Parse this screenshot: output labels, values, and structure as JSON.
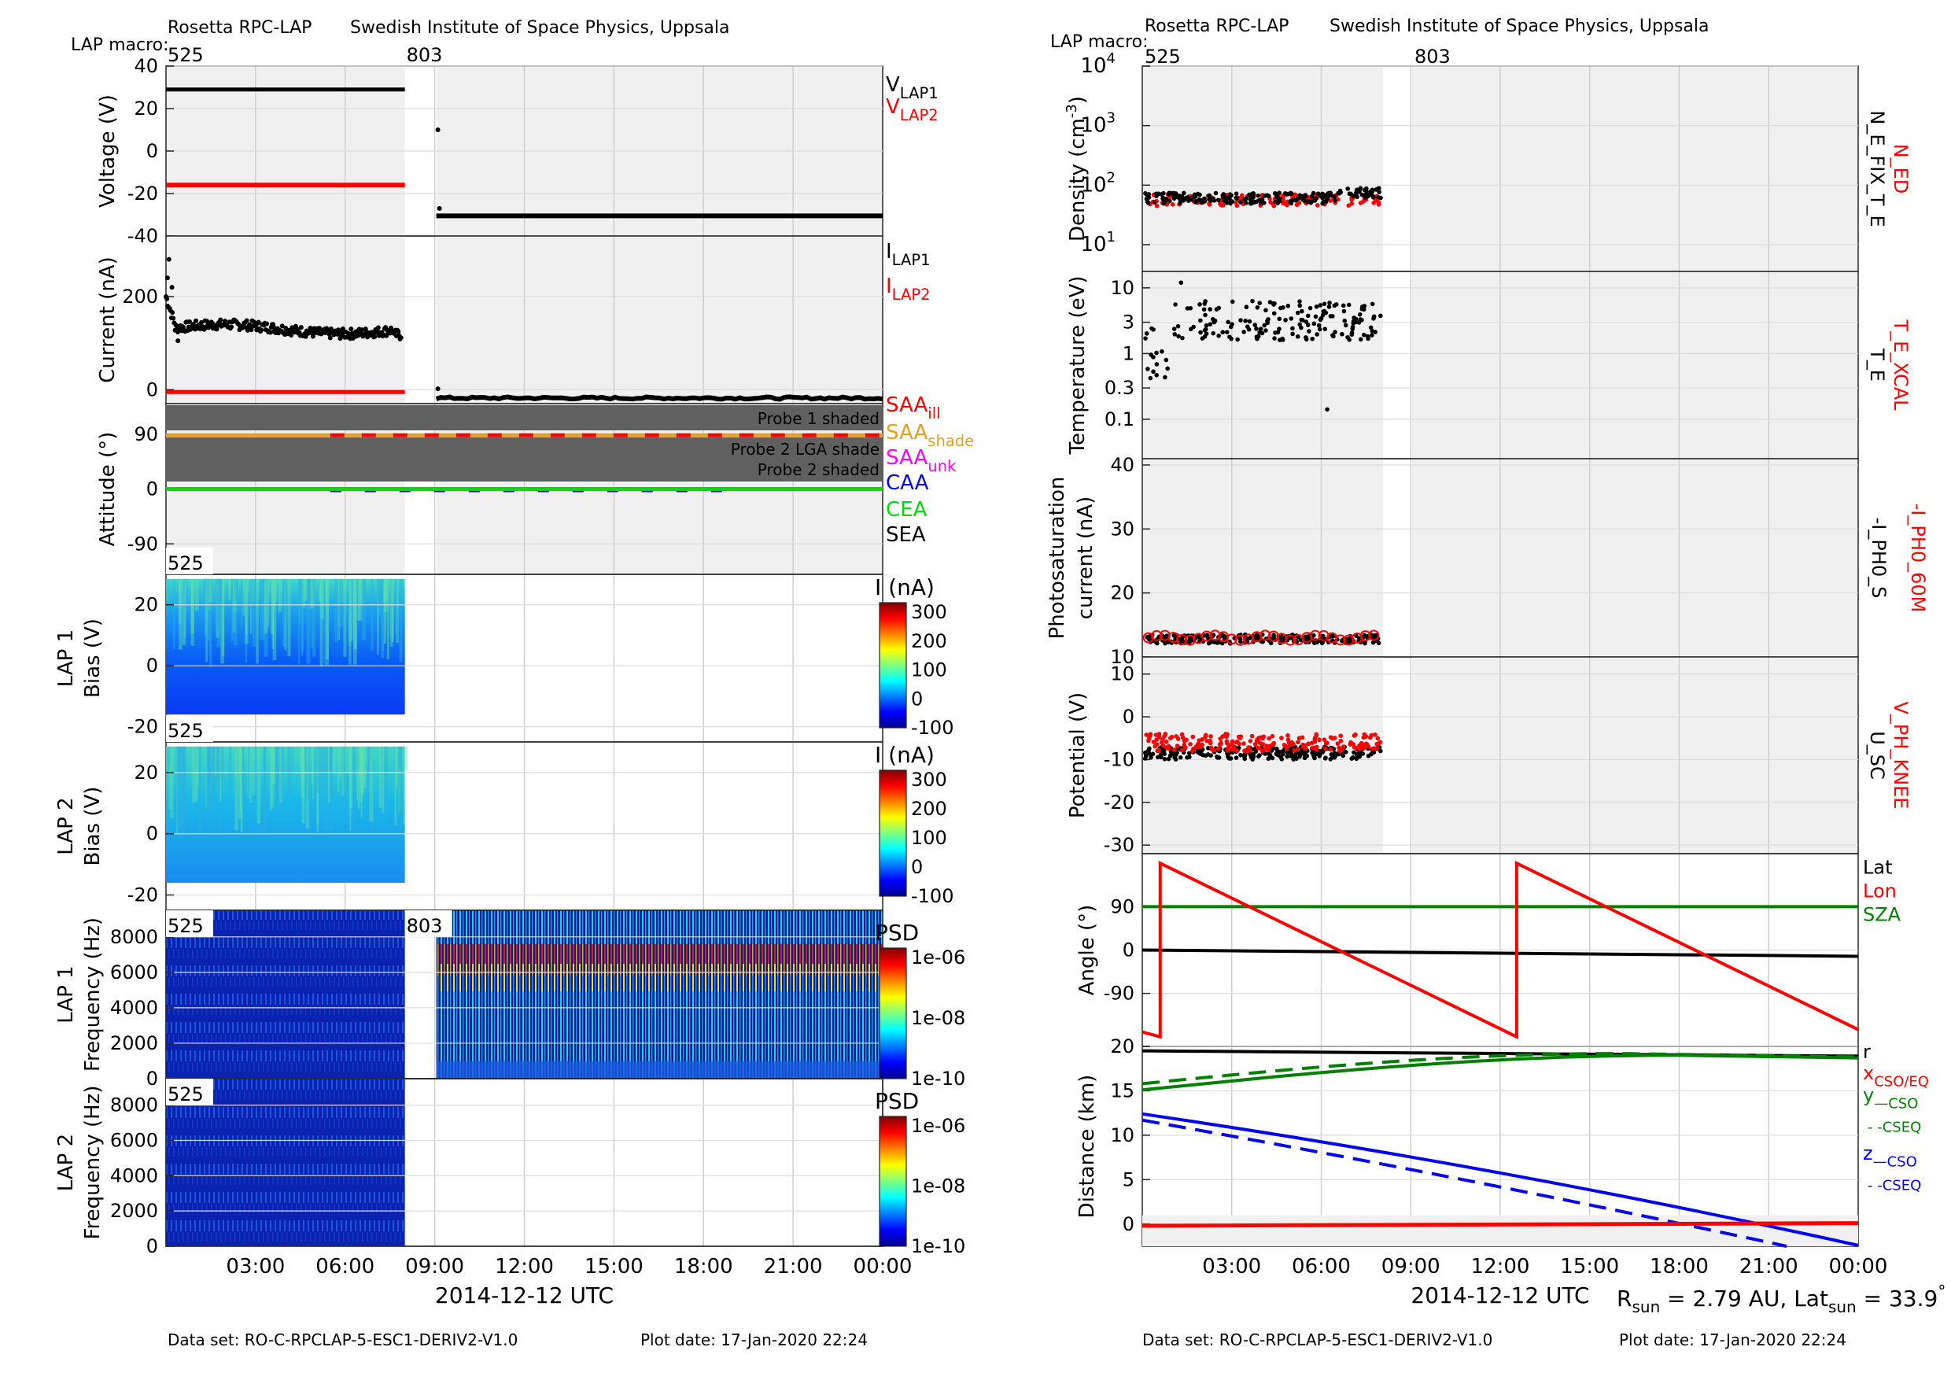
{
  "left": {
    "header": {
      "instrument": "Rosetta RPC-LAP",
      "institute": "Swedish Institute of Space Physics, Uppsala",
      "macro_label": "LAP macro:",
      "macros": [
        "525",
        "803"
      ]
    },
    "footer": {
      "dataset": "Data set: RO-C-RPCLAP-5-ESC1-DERIV2-V1.0",
      "plot_date": "Plot date: 17-Jan-2020 22:24"
    },
    "x_axis_title": "2014-12-12 UTC",
    "x_ticks": [
      "03:00",
      "06:00",
      "09:00",
      "12:00",
      "15:00",
      "18:00",
      "21:00",
      "00:00"
    ],
    "voltage": {
      "ylabel": "Voltage (V)",
      "ticks": [
        "40",
        "20",
        "0",
        "-20",
        "-40"
      ],
      "legend": [
        {
          "main": "V",
          "sub": "LAP1",
          "color": "#000000"
        },
        {
          "main": "V",
          "sub": "LAP2",
          "color": "#ff0000"
        }
      ]
    },
    "current": {
      "ylabel": "Current (nA)",
      "ticks": [
        "200",
        "0"
      ],
      "legend": [
        {
          "main": "I",
          "sub": "LAP1",
          "color": "#000000"
        },
        {
          "main": "I",
          "sub": "LAP2",
          "color": "#ff0000"
        }
      ]
    },
    "attitude": {
      "ylabel": "Attitude (°)",
      "ticks": [
        "90",
        "0",
        "-90"
      ],
      "bands": [
        "Probe 1 shaded",
        "Probe 2 LGA shade",
        "Probe 2 shaded"
      ],
      "legend": [
        {
          "main": "SAA",
          "sub": "ill",
          "color": "#ff0000"
        },
        {
          "main": "SAA",
          "sub": "shade",
          "color": "#e6a020"
        },
        {
          "main": "SAA",
          "sub": "unk",
          "color": "#ff00ff"
        },
        {
          "main": "CAA",
          "sub": "",
          "color": "#0000ff"
        },
        {
          "main": "CEA",
          "sub": "",
          "color": "#00dd00"
        },
        {
          "main": "SEA",
          "sub": "",
          "color": "#000000"
        }
      ]
    },
    "lap1_bias": {
      "ylabel1": "LAP 1",
      "ylabel2": "Bias (V)",
      "ticks": [
        "20",
        "0",
        "-20"
      ],
      "macro": "525",
      "cbar_title": "I (nA)",
      "cbar_ticks": [
        "300",
        "200",
        "100",
        "0",
        "-100"
      ]
    },
    "lap2_bias": {
      "ylabel1": "LAP 2",
      "ylabel2": "Bias (V)",
      "ticks": [
        "20",
        "0",
        "-20"
      ],
      "macro": "525",
      "cbar_title": "I (nA)",
      "cbar_ticks": [
        "300",
        "200",
        "100",
        "0",
        "-100"
      ]
    },
    "lap1_freq": {
      "ylabel1": "LAP 1",
      "ylabel2": "Frequency (Hz)",
      "ticks": [
        "8000",
        "6000",
        "4000",
        "2000",
        "0"
      ],
      "macros": [
        "525",
        "803"
      ],
      "cbar_title": "PSD",
      "cbar_ticks": [
        "1e-06",
        "1e-08",
        "1e-10"
      ]
    },
    "lap2_freq": {
      "ylabel1": "LAP 2",
      "ylabel2": "Frequency (Hz)",
      "ticks": [
        "8000",
        "6000",
        "4000",
        "2000",
        "0"
      ],
      "macro": "525",
      "cbar_title": "PSD",
      "cbar_ticks": [
        "1e-06",
        "1e-08",
        "1e-10"
      ]
    }
  },
  "right": {
    "header": {
      "instrument": "Rosetta RPC-LAP",
      "institute": "Swedish Institute of Space Physics, Uppsala",
      "macro_label": "LAP macro:",
      "macros": [
        "525",
        "803"
      ]
    },
    "footer": {
      "dataset": "Data set: RO-C-RPCLAP-5-ESC1-DERIV2-V1.0",
      "plot_date": "Plot date: 17-Jan-2020 22:24"
    },
    "x_axis_title": "2014-12-12 UTC",
    "x_ticks": [
      "03:00",
      "06:00",
      "09:00",
      "12:00",
      "15:00",
      "18:00",
      "21:00",
      "00:00"
    ],
    "rsun": {
      "label": "R",
      "sub": "sun",
      "value": " = 2.79 AU, Lat",
      "sub2": "sun",
      "value2": " = 33.9",
      "deg": "°"
    },
    "density": {
      "ylabel": "Density (cm",
      "ylabel_sup": "-3",
      "ylabel_end": ")",
      "ticks": [
        {
          "b": "10",
          "e": "4"
        },
        {
          "b": "10",
          "e": "3"
        },
        {
          "b": "10",
          "e": "2"
        },
        {
          "b": "10",
          "e": "1"
        }
      ],
      "legend": [
        {
          "text": "N_ED",
          "color": "#ff0000"
        },
        {
          "text": "N_E_FIX_T_E",
          "color": "#000000"
        }
      ]
    },
    "temperature": {
      "ylabel": "Temperature (eV)",
      "ticks": [
        "10",
        "3",
        "1",
        "0.3",
        "0.1"
      ],
      "legend": [
        {
          "text": "T_E_XCAL",
          "color": "#ff0000"
        },
        {
          "text": "T_E",
          "color": "#000000"
        }
      ]
    },
    "photo": {
      "ylabel1": "Photosaturation",
      "ylabel2": "current (nA)",
      "ticks": [
        "40",
        "30",
        "20",
        "10"
      ],
      "legend": [
        {
          "text": "-I_PH0_60M",
          "color": "#ff0000"
        },
        {
          "text": "-I_PH0_S",
          "color": "#000000"
        }
      ]
    },
    "potential": {
      "ylabel": "Potential (V)",
      "ticks": [
        "10",
        "0",
        "-10",
        "-20",
        "-30"
      ],
      "legend": [
        {
          "text": "V_PH_KNEE",
          "color": "#ff0000"
        },
        {
          "text": "U_SC",
          "color": "#000000"
        }
      ]
    },
    "angle": {
      "ylabel": "Angle (°)",
      "ticks": [
        "90",
        "0",
        "-90"
      ],
      "legend": [
        {
          "text": "Lat",
          "color": "#000000"
        },
        {
          "text": "Lon",
          "color": "#ff0000"
        },
        {
          "text": "SZA",
          "color": "#008000"
        }
      ]
    },
    "distance": {
      "ylabel": "Distance (km)",
      "ticks": [
        "20",
        "15",
        "10",
        "5",
        "0"
      ],
      "legend": [
        {
          "main": "r",
          "sub": "",
          "color": "#000000"
        },
        {
          "main": "x",
          "sub": "CSO/EQ",
          "color": "#ff0000"
        },
        {
          "main": "y",
          "sub": "—CSO",
          "color": "#008000"
        },
        {
          "main": "",
          "sub": "- -CSEQ",
          "color": "#008000"
        },
        {
          "main": "z",
          "sub": "—CSO",
          "color": "#0000ff"
        },
        {
          "main": "",
          "sub": "- -CSEQ",
          "color": "#0000ff"
        }
      ]
    }
  },
  "chart_data": [
    {
      "panel": "left-voltage",
      "type": "scatter",
      "ylabel": "Voltage (V)",
      "ylim": [
        -40,
        40
      ],
      "series": [
        {
          "name": "VLAP1",
          "x": [
            "00:00",
            "08:00"
          ],
          "y": [
            29,
            29
          ]
        },
        {
          "name": "VLAP2",
          "x": [
            "00:00",
            "08:00"
          ],
          "y": [
            -16,
            -16
          ]
        },
        {
          "name": "VLAP1",
          "x": [
            "09:00",
            "24:00"
          ],
          "y": [
            -30.5,
            -30.5
          ]
        }
      ]
    },
    {
      "panel": "left-current",
      "type": "scatter",
      "ylabel": "Current (nA)",
      "ylim": [
        -10,
        320
      ],
      "series": [
        {
          "name": "ILAP1",
          "x": [
            "00:00",
            "01:00",
            "04:00",
            "07:00",
            "08:00",
            "09:00",
            "24:00"
          ],
          "y": [
            190,
            130,
            125,
            140,
            115,
            -5,
            -5
          ]
        },
        {
          "name": "ILAP2",
          "x": [
            "00:00",
            "08:00"
          ],
          "y": [
            0,
            0
          ]
        }
      ]
    },
    {
      "panel": "left-attitude",
      "type": "line",
      "ylabel": "Attitude (°)",
      "ylim": [
        -130,
        130
      ],
      "series": [
        {
          "name": "SAA",
          "x": [
            "00:00",
            "24:00"
          ],
          "y": [
            88,
            88
          ]
        },
        {
          "name": "CEA",
          "x": [
            "00:00",
            "24:00"
          ],
          "y": [
            0,
            0
          ]
        }
      ]
    },
    {
      "panel": "right-density",
      "type": "scatter",
      "ylabel": "Density",
      "ylim": [
        5,
        10000
      ],
      "log": true,
      "series": [
        {
          "name": "N_E_FIX_T_E",
          "x": [
            "00:00",
            "04:00",
            "08:00"
          ],
          "y": [
            60,
            60,
            55
          ]
        },
        {
          "name": "N_ED",
          "x": [
            "00:00",
            "04:00",
            "08:00"
          ],
          "y": [
            55,
            55,
            50
          ]
        }
      ]
    },
    {
      "panel": "right-potential",
      "type": "scatter",
      "ylabel": "Potential (V)",
      "ylim": [
        -32,
        14
      ],
      "series": [
        {
          "name": "U_SC",
          "x": [
            "00:00",
            "04:00",
            "08:00"
          ],
          "y": [
            -8,
            -9,
            -8
          ]
        },
        {
          "name": "V_PH_KNEE",
          "x": [
            "00:00",
            "04:00",
            "08:00"
          ],
          "y": [
            -6,
            -7,
            -5
          ]
        }
      ]
    },
    {
      "panel": "right-angle",
      "type": "line",
      "ylabel": "Angle (°)",
      "ylim": [
        -200,
        200
      ],
      "series": [
        {
          "name": "Lat",
          "x": [
            "00:00",
            "24:00"
          ],
          "y": [
            0,
            -13
          ]
        },
        {
          "name": "SZA",
          "x": [
            "00:00",
            "24:00"
          ],
          "y": [
            90,
            90
          ]
        },
        {
          "name": "Lon",
          "x": [
            "00:00",
            "00:36",
            "00:48",
            "12:36",
            "12:48",
            "24:00"
          ],
          "y": [
            -170,
            -180,
            180,
            -180,
            180,
            -160
          ]
        }
      ]
    },
    {
      "panel": "right-distance",
      "type": "line",
      "ylabel": "Distance (km)",
      "ylim": [
        -2.5,
        20
      ],
      "series": [
        {
          "name": "r",
          "x": [
            "00:00",
            "24:00"
          ],
          "y": [
            19.5,
            18.9
          ]
        },
        {
          "name": "x",
          "x": [
            "00:00",
            "24:00"
          ],
          "y": [
            -0.2,
            0.1
          ]
        },
        {
          "name": "y CSO",
          "x": [
            "00:00",
            "18:00",
            "24:00"
          ],
          "y": [
            15.1,
            19.0,
            18.7
          ]
        },
        {
          "name": "z CSO",
          "x": [
            "00:00",
            "24:00"
          ],
          "y": [
            12.4,
            -2.4
          ]
        }
      ]
    }
  ]
}
